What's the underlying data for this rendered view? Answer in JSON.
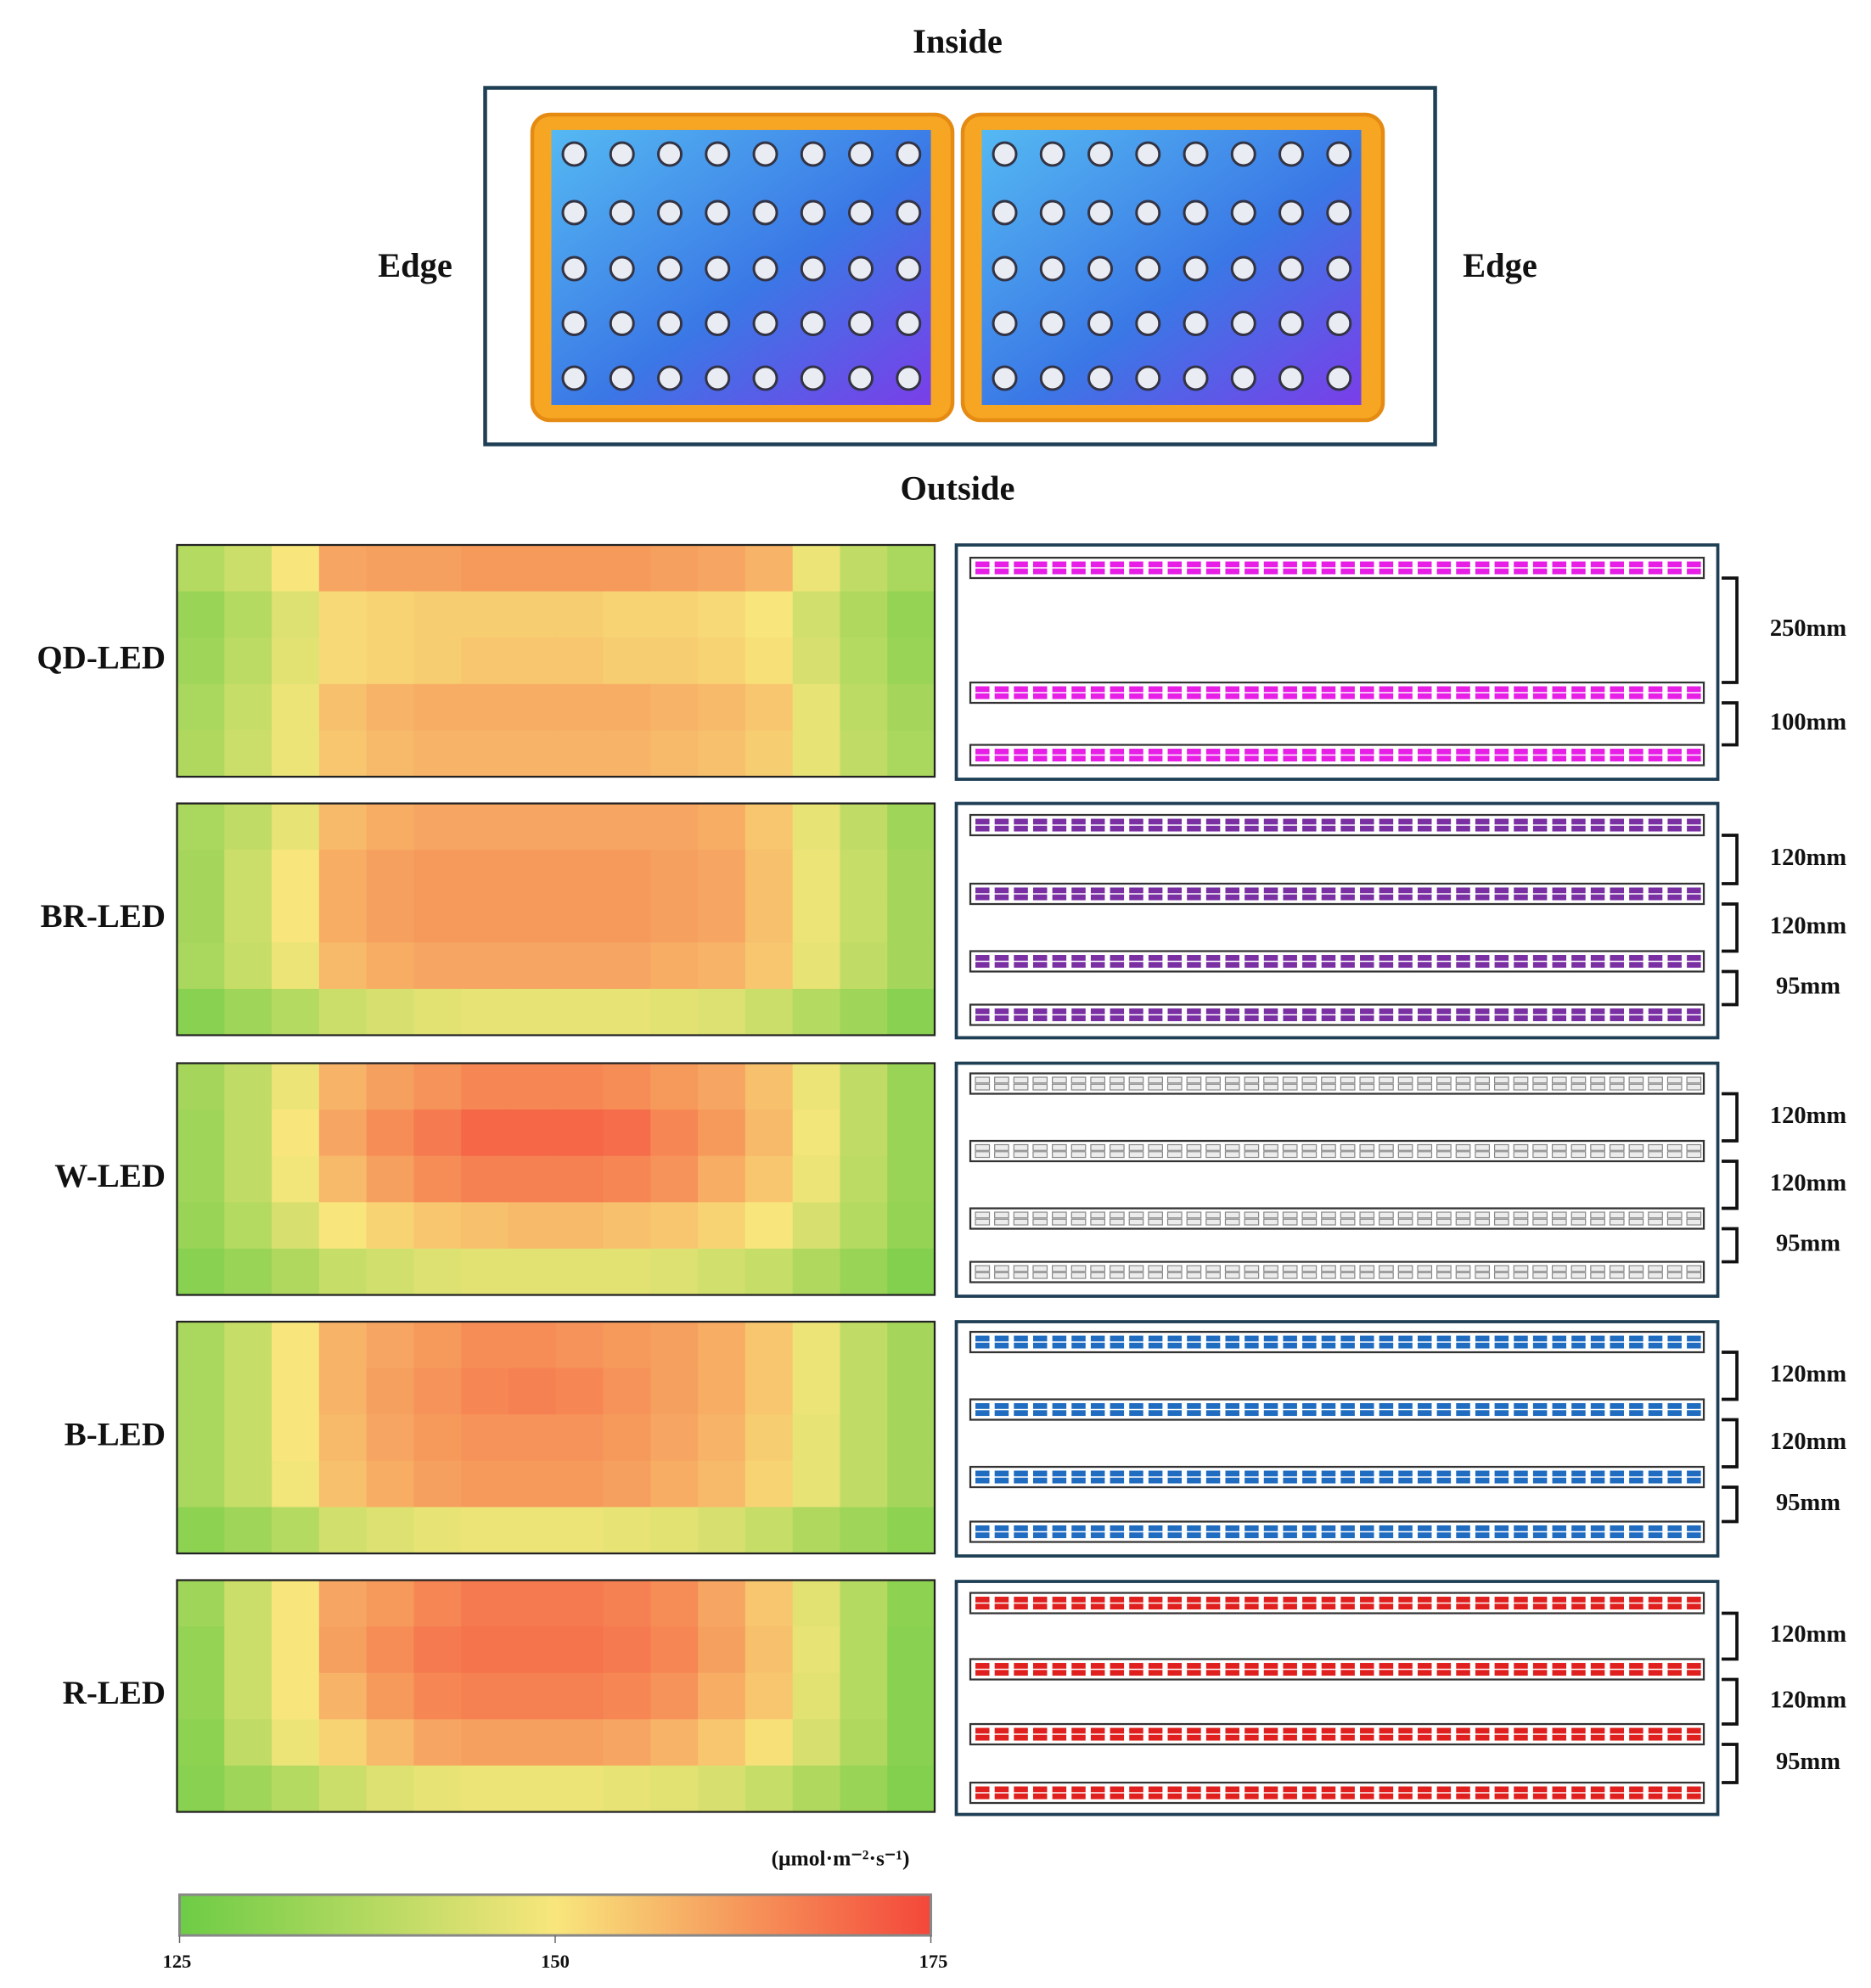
{
  "photo": {
    "top": "Inside",
    "bottom": "Outside",
    "left": "Edge",
    "right": "Edge"
  },
  "chart_data": [
    {
      "type": "heatmap",
      "title": "QD-LED",
      "values": [
        [
          138,
          142,
          150,
          160,
          161,
          161,
          162,
          162,
          162,
          162,
          161,
          160,
          158,
          148,
          140,
          136
        ],
        [
          133,
          138,
          145,
          152,
          153,
          154,
          154,
          154,
          154,
          153,
          153,
          152,
          150,
          143,
          137,
          132
        ],
        [
          134,
          139,
          146,
          152,
          153,
          154,
          155,
          155,
          155,
          154,
          154,
          153,
          151,
          144,
          138,
          133
        ],
        [
          136,
          141,
          148,
          156,
          158,
          159,
          159,
          159,
          159,
          159,
          158,
          157,
          155,
          147,
          139,
          135
        ],
        [
          137,
          142,
          148,
          155,
          157,
          158,
          158,
          158,
          158,
          158,
          157,
          156,
          154,
          147,
          140,
          136
        ]
      ]
    },
    {
      "type": "heatmap",
      "title": "BR-LED",
      "values": [
        [
          136,
          140,
          147,
          157,
          159,
          160,
          160,
          160,
          160,
          160,
          160,
          159,
          155,
          147,
          140,
          134
        ],
        [
          135,
          142,
          150,
          159,
          161,
          162,
          162,
          162,
          162,
          162,
          161,
          160,
          156,
          148,
          141,
          135
        ],
        [
          135,
          142,
          150,
          159,
          161,
          162,
          162,
          162,
          162,
          162,
          161,
          160,
          156,
          148,
          141,
          135
        ],
        [
          136,
          141,
          148,
          157,
          159,
          160,
          160,
          160,
          160,
          160,
          159,
          158,
          155,
          147,
          140,
          135
        ],
        [
          130,
          134,
          138,
          142,
          144,
          146,
          147,
          147,
          147,
          147,
          146,
          145,
          142,
          138,
          134,
          130
        ]
      ]
    },
    {
      "type": "heatmap",
      "title": "W-LED",
      "values": [
        [
          135,
          140,
          148,
          158,
          161,
          163,
          165,
          165,
          165,
          164,
          162,
          160,
          156,
          148,
          140,
          133
        ],
        [
          134,
          140,
          150,
          160,
          164,
          167,
          170,
          170,
          170,
          169,
          165,
          162,
          157,
          149,
          140,
          133
        ],
        [
          134,
          140,
          149,
          157,
          161,
          164,
          166,
          166,
          166,
          165,
          163,
          159,
          155,
          148,
          139,
          133
        ],
        [
          133,
          138,
          144,
          150,
          153,
          155,
          156,
          157,
          157,
          156,
          155,
          153,
          150,
          144,
          138,
          132
        ],
        [
          130,
          133,
          137,
          141,
          143,
          145,
          146,
          146,
          146,
          146,
          145,
          143,
          141,
          137,
          133,
          129
        ]
      ]
    },
    {
      "type": "heatmap",
      "title": "B-LED",
      "values": [
        [
          136,
          141,
          150,
          158,
          160,
          162,
          164,
          164,
          163,
          162,
          161,
          159,
          155,
          148,
          140,
          135
        ],
        [
          136,
          141,
          150,
          158,
          161,
          163,
          165,
          166,
          165,
          163,
          161,
          159,
          155,
          148,
          140,
          135
        ],
        [
          136,
          141,
          150,
          157,
          160,
          162,
          163,
          163,
          163,
          162,
          160,
          158,
          154,
          147,
          140,
          135
        ],
        [
          136,
          141,
          149,
          156,
          159,
          161,
          162,
          162,
          162,
          161,
          159,
          157,
          153,
          147,
          140,
          135
        ],
        [
          131,
          134,
          138,
          143,
          145,
          147,
          148,
          148,
          148,
          147,
          146,
          144,
          141,
          137,
          134,
          131
        ]
      ]
    },
    {
      "type": "heatmap",
      "title": "R-LED",
      "values": [
        [
          134,
          142,
          150,
          160,
          162,
          165,
          167,
          167,
          167,
          166,
          164,
          160,
          155,
          146,
          138,
          131
        ],
        [
          132,
          142,
          150,
          161,
          164,
          167,
          168,
          168,
          168,
          167,
          165,
          161,
          156,
          147,
          138,
          130
        ],
        [
          132,
          142,
          150,
          158,
          162,
          165,
          166,
          166,
          166,
          165,
          163,
          159,
          155,
          146,
          138,
          130
        ],
        [
          131,
          140,
          148,
          153,
          157,
          160,
          161,
          161,
          161,
          160,
          158,
          155,
          151,
          144,
          137,
          130
        ],
        [
          130,
          134,
          138,
          142,
          145,
          147,
          148,
          148,
          148,
          147,
          146,
          144,
          141,
          137,
          133,
          129
        ]
      ]
    }
  ],
  "colorbar": {
    "label": "(μmol·m⁻²·s⁻¹)",
    "lim": [
      125,
      175
    ],
    "ticks": [
      125,
      150,
      175
    ],
    "colors": [
      "#6dcc45",
      "#f8e67c",
      "#f4473a"
    ]
  },
  "fixtures": [
    {
      "color": "#e61ee6",
      "spacings": [
        "250mm",
        "100mm"
      ]
    },
    {
      "color": "#7a2fa3",
      "spacings": [
        "120mm",
        "120mm",
        "95mm"
      ]
    },
    {
      "color": "#ececec",
      "spacings": [
        "120mm",
        "120mm",
        "95mm"
      ]
    },
    {
      "color": "#1f6cc0",
      "spacings": [
        "120mm",
        "120mm",
        "95mm"
      ]
    },
    {
      "color": "#e0201e",
      "spacings": [
        "120mm",
        "120mm",
        "95mm"
      ]
    }
  ]
}
